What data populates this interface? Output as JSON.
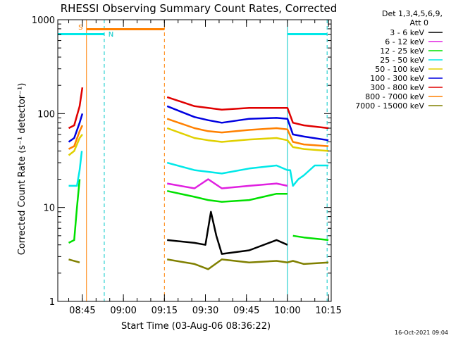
{
  "chart_data": {
    "type": "line",
    "title": "RHESSI Observing Summary Count Rates, Corrected",
    "xlabel": "Start Time (03-Aug-06 08:36:22)",
    "ylabel": "Corrected Count Rate (s⁻¹ detector⁻¹)",
    "yscale": "log",
    "ylim": [
      1,
      1000
    ],
    "xlim_min": [
      0,
      100
    ],
    "xticks": [
      {
        "t": 9,
        "label": "08:45"
      },
      {
        "t": 24,
        "label": "09:00"
      },
      {
        "t": 39,
        "label": "09:15"
      },
      {
        "t": 54,
        "label": "09:30"
      },
      {
        "t": 69,
        "label": "09:45"
      },
      {
        "t": 84,
        "label": "10:00"
      },
      {
        "t": 99,
        "label": "10:15"
      }
    ],
    "yticks": [
      {
        "v": 1,
        "label": "1"
      },
      {
        "v": 10,
        "label": "10"
      },
      {
        "v": 100,
        "label": "100"
      },
      {
        "v": 1000,
        "label": "1000"
      }
    ],
    "legend_header": [
      "Det 1,3,4,5,6,9,",
      "Att 0"
    ],
    "legend_position": "right",
    "series": [
      {
        "name": "3 - 6 keV",
        "color": "#000000",
        "pts": [
          [
            4,
            null
          ],
          [
            40,
            4.5
          ],
          [
            50,
            4.2
          ],
          [
            54,
            4
          ],
          [
            56,
            9
          ],
          [
            58,
            5
          ],
          [
            60,
            3.2
          ],
          [
            70,
            3.5
          ],
          [
            80,
            4.5
          ],
          [
            84,
            4
          ],
          [
            85,
            null
          ]
        ]
      },
      {
        "name": "6 - 12 keV",
        "color": "#e020e0",
        "pts": [
          [
            4,
            null
          ],
          [
            40,
            18
          ],
          [
            50,
            16
          ],
          [
            55,
            20
          ],
          [
            60,
            16
          ],
          [
            70,
            17
          ],
          [
            80,
            18
          ],
          [
            84,
            17
          ],
          [
            85,
            null
          ]
        ]
      },
      {
        "name": "12 - 25 keV",
        "color": "#00e000",
        "pts": [
          [
            4,
            4.2
          ],
          [
            6,
            4.5
          ],
          [
            7,
            10
          ],
          [
            8,
            20
          ],
          [
            9,
            null
          ],
          [
            40,
            15
          ],
          [
            50,
            13
          ],
          [
            55,
            12
          ],
          [
            60,
            11.5
          ],
          [
            70,
            12
          ],
          [
            80,
            14
          ],
          [
            84,
            14
          ],
          [
            85,
            null
          ],
          [
            86,
            5
          ],
          [
            90,
            4.8
          ],
          [
            99,
            4.5
          ]
        ]
      },
      {
        "name": "25 - 50 keV",
        "color": "#00e8e8",
        "pts": [
          [
            4,
            17
          ],
          [
            7,
            17
          ],
          [
            8,
            25
          ],
          [
            8.8,
            40
          ],
          [
            9,
            null
          ],
          [
            40,
            30
          ],
          [
            50,
            25
          ],
          [
            55,
            24
          ],
          [
            60,
            23
          ],
          [
            70,
            26
          ],
          [
            80,
            28
          ],
          [
            84,
            25
          ],
          [
            85,
            25
          ],
          [
            86,
            17
          ],
          [
            88,
            20
          ],
          [
            90,
            22
          ],
          [
            94,
            28
          ],
          [
            99,
            28
          ]
        ]
      },
      {
        "name": "50 - 100 keV",
        "color": "#e0d000",
        "pts": [
          [
            4,
            36
          ],
          [
            6,
            40
          ],
          [
            8,
            55
          ],
          [
            9,
            60
          ],
          [
            9.2,
            null
          ],
          [
            40,
            70
          ],
          [
            50,
            55
          ],
          [
            55,
            52
          ],
          [
            60,
            50
          ],
          [
            70,
            53
          ],
          [
            80,
            55
          ],
          [
            84,
            52
          ],
          [
            86,
            44
          ],
          [
            90,
            42
          ],
          [
            99,
            40
          ]
        ]
      },
      {
        "name": "100 - 300 keV",
        "color": "#0000e0",
        "pts": [
          [
            4,
            50
          ],
          [
            6,
            55
          ],
          [
            8,
            80
          ],
          [
            9,
            100
          ],
          [
            9.3,
            null
          ],
          [
            40,
            120
          ],
          [
            50,
            92
          ],
          [
            55,
            85
          ],
          [
            60,
            80
          ],
          [
            70,
            88
          ],
          [
            80,
            90
          ],
          [
            84,
            88
          ],
          [
            86,
            60
          ],
          [
            90,
            57
          ],
          [
            99,
            52
          ]
        ]
      },
      {
        "name": "300 - 800 keV",
        "color": "#e00000",
        "pts": [
          [
            4,
            70
          ],
          [
            6,
            75
          ],
          [
            8,
            120
          ],
          [
            9,
            190
          ],
          [
            9.4,
            null
          ],
          [
            40,
            150
          ],
          [
            50,
            120
          ],
          [
            55,
            115
          ],
          [
            60,
            110
          ],
          [
            70,
            115
          ],
          [
            80,
            115
          ],
          [
            84,
            115
          ],
          [
            86,
            80
          ],
          [
            90,
            75
          ],
          [
            99,
            70
          ]
        ]
      },
      {
        "name": "800 - 7000 keV",
        "color": "#ff8000",
        "pts": [
          [
            4,
            42
          ],
          [
            6,
            45
          ],
          [
            8,
            65
          ],
          [
            9,
            75
          ],
          [
            9.2,
            null
          ],
          [
            40,
            88
          ],
          [
            50,
            70
          ],
          [
            55,
            65
          ],
          [
            60,
            63
          ],
          [
            70,
            67
          ],
          [
            80,
            70
          ],
          [
            84,
            68
          ],
          [
            86,
            50
          ],
          [
            90,
            47
          ],
          [
            99,
            45
          ]
        ]
      },
      {
        "name": "7000 - 15000 keV",
        "color": "#808000",
        "pts": [
          [
            4,
            2.8
          ],
          [
            8,
            2.6
          ],
          [
            9,
            null
          ],
          [
            40,
            2.8
          ],
          [
            50,
            2.5
          ],
          [
            55,
            2.2
          ],
          [
            60,
            2.8
          ],
          [
            70,
            2.6
          ],
          [
            80,
            2.7
          ],
          [
            84,
            2.6
          ],
          [
            86,
            2.7
          ],
          [
            90,
            2.5
          ],
          [
            99,
            2.6
          ]
        ]
      }
    ],
    "annotations": [
      {
        "label": "S",
        "color": "#ff8000"
      },
      {
        "label": "N",
        "color": "#00c8c8"
      }
    ],
    "footer_timestamp": "16-Oct-2021 09:04"
  }
}
